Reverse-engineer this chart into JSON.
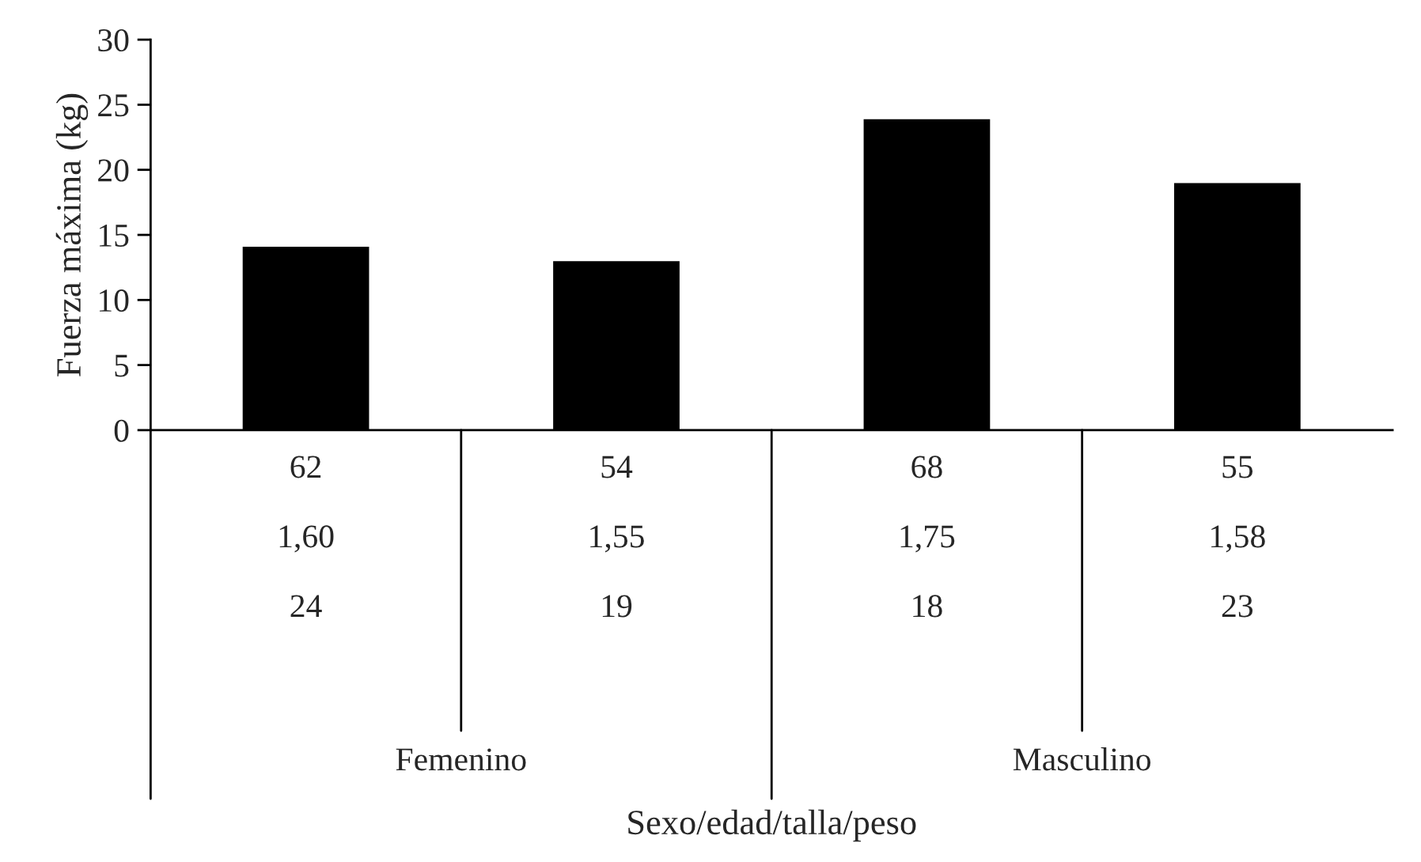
{
  "chart_data": {
    "type": "bar",
    "ylabel": "Fuerza máxima (kg)",
    "categories": [
      "62\n1,60\n24",
      "54\n1,55\n19",
      "68\n1,75\n18",
      "55\n1,58\n23"
    ],
    "values": [
      14.0,
      12.9,
      23.8,
      18.9
    ],
    "color": "#000000",
    "ylim": [
      0,
      30
    ],
    "yticks": [
      0,
      5,
      10,
      15,
      20,
      25,
      30
    ],
    "grid": false,
    "legend": false,
    "annotations": [
      "Femenino",
      "Masculino",
      "Sexo/edad/talla/peso"
    ]
  }
}
